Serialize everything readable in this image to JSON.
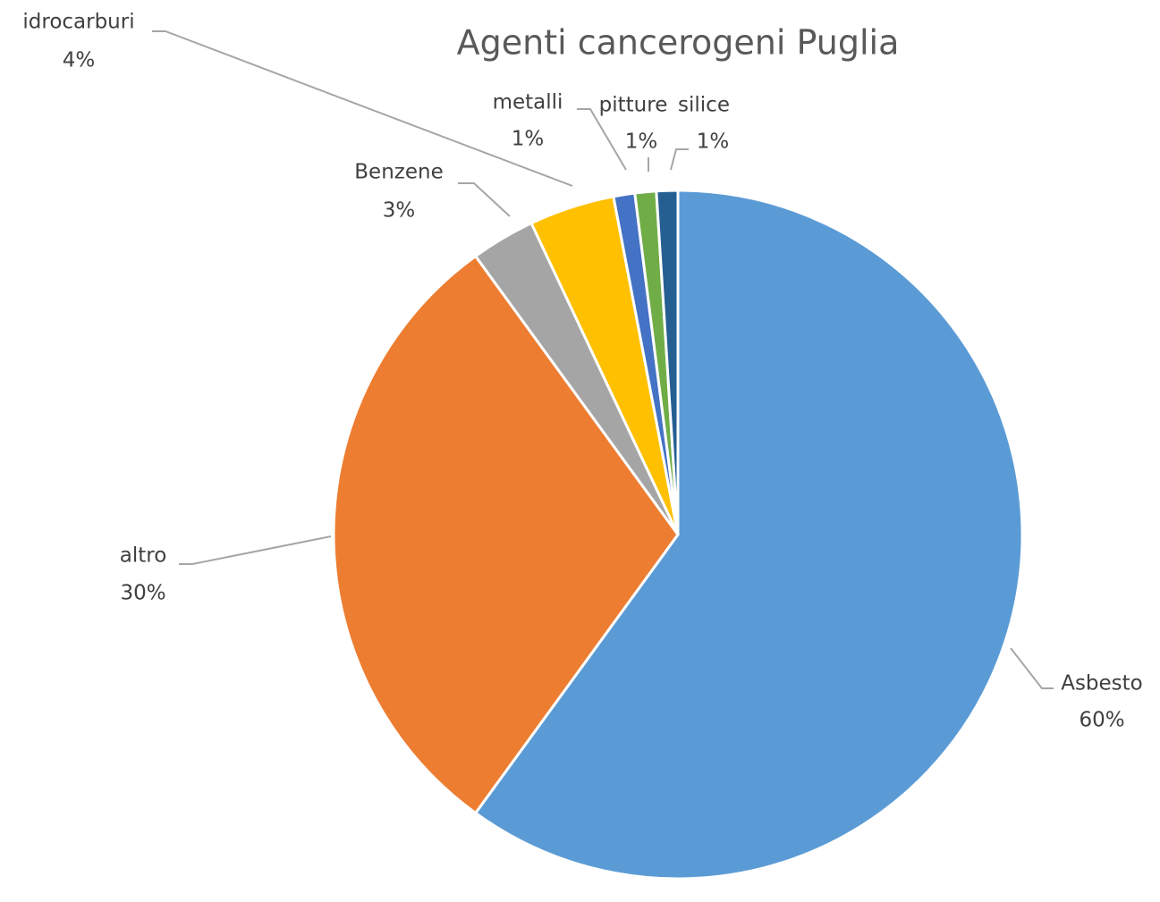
{
  "chart_data": {
    "type": "pie",
    "title": "Agenti cancerogeni Puglia",
    "categories": [
      "Asbesto",
      "altro",
      "Benzene",
      "idrocarburi",
      "metalli",
      "pitture",
      "silice"
    ],
    "values": [
      60,
      30,
      3,
      4,
      1,
      1,
      1
    ],
    "value_labels": [
      "60%",
      "30%",
      "3%",
      "4%",
      "1%",
      "1%",
      "1%"
    ],
    "colors": [
      "#5b9bd5",
      "#ed7d31",
      "#a5a5a5",
      "#ffc000",
      "#4472c4",
      "#70ad47",
      "#255e91"
    ]
  }
}
